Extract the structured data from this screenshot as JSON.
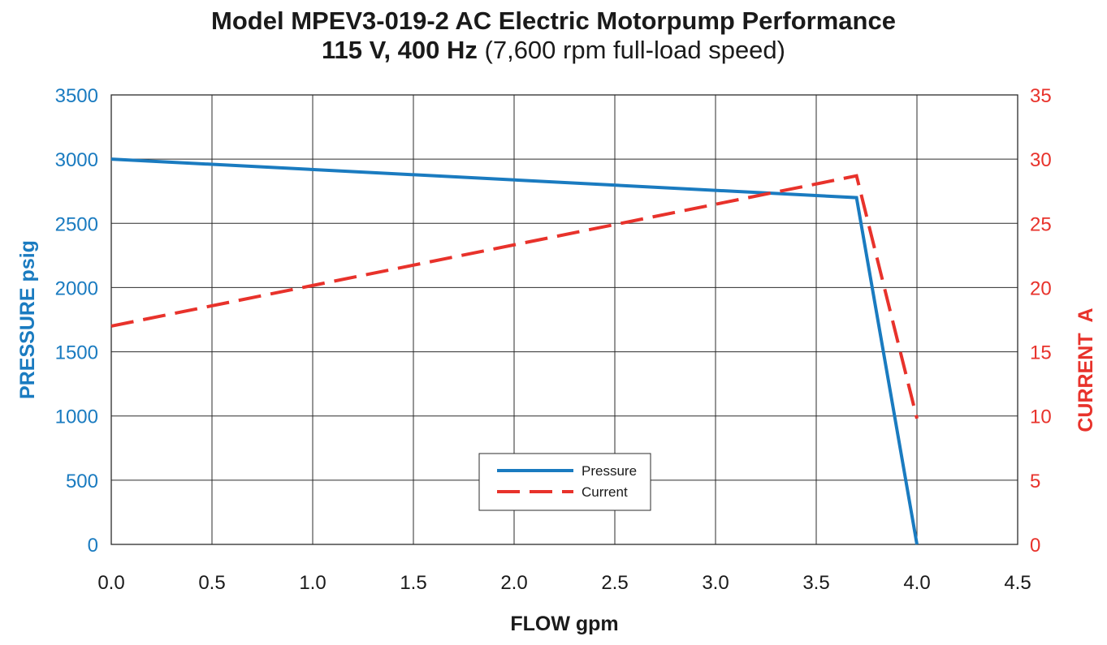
{
  "title": {
    "line1": "Model MPEV3-019-2 AC Electric Motorpump Performance",
    "line2_bold": "115 V, 400 Hz",
    "line2_rest": "(7,600 rpm full-load speed)"
  },
  "colors": {
    "pressure": "#1a7bc0",
    "current": "#e8322b",
    "grid": "#2b2b2b",
    "text": "#1a1a1a"
  },
  "chart_data": {
    "type": "line",
    "xlabel": "FLOW gpm",
    "ylabel": "PRESSURE psig",
    "y2label": "CURRENT  A",
    "xlim": [
      0,
      4.5
    ],
    "ylim": [
      0,
      3500
    ],
    "y2lim": [
      0,
      35
    ],
    "x_ticks": [
      "0.0",
      "0.5",
      "1.0",
      "1.5",
      "2.0",
      "2.5",
      "3.0",
      "3.5",
      "4.0",
      "4.5"
    ],
    "y_ticks": [
      "0",
      "500",
      "1000",
      "1500",
      "2000",
      "2500",
      "3000",
      "3500"
    ],
    "y2_ticks": [
      "0",
      "5",
      "10",
      "15",
      "20",
      "25",
      "30",
      "35"
    ],
    "grid": true,
    "legend_position": "bottom-center",
    "series": [
      {
        "name": "Pressure",
        "axis": "left",
        "style": "solid",
        "x": [
          0.0,
          3.7,
          4.0
        ],
        "y": [
          3000,
          2700,
          0
        ]
      },
      {
        "name": "Current",
        "axis": "right",
        "style": "dashed",
        "x": [
          0.0,
          3.7,
          4.0
        ],
        "y": [
          17.0,
          28.7,
          9.8
        ]
      }
    ]
  }
}
